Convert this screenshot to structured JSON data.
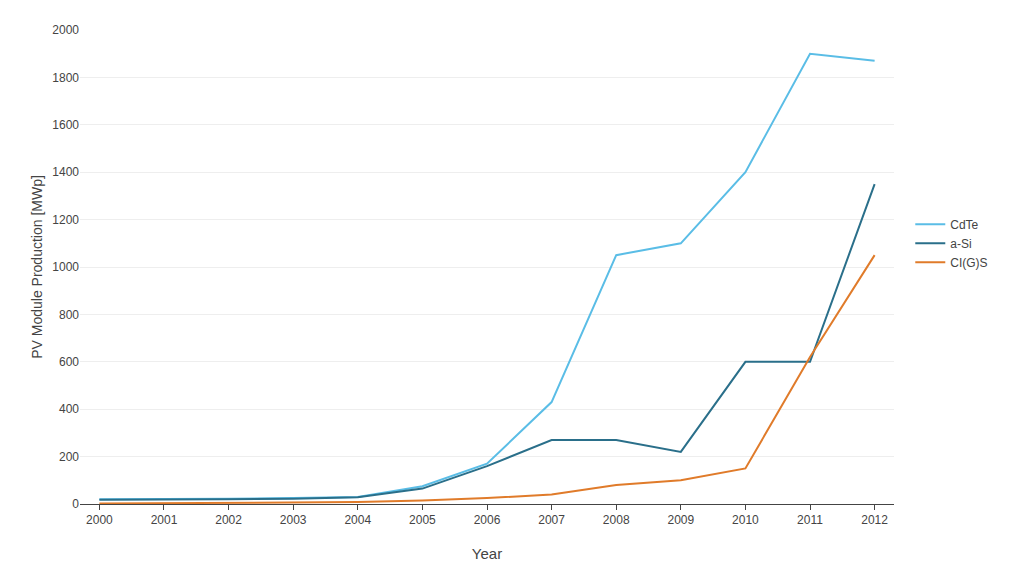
{
  "chart_data": {
    "type": "line",
    "x": [
      2000,
      2001,
      2002,
      2003,
      2004,
      2005,
      2006,
      2007,
      2008,
      2009,
      2010,
      2011,
      2012
    ],
    "series": [
      {
        "name": "CdTe",
        "color": "#5abde6",
        "values": [
          20,
          20,
          22,
          25,
          30,
          75,
          170,
          430,
          1050,
          1100,
          1400,
          1900,
          1870
        ]
      },
      {
        "name": "a-Si",
        "color": "#2a6f8a",
        "values": [
          18,
          18,
          20,
          22,
          28,
          65,
          160,
          270,
          270,
          220,
          600,
          600,
          1350
        ]
      },
      {
        "name": "CI(G)S",
        "color": "#e07b2a",
        "values": [
          2,
          3,
          4,
          5,
          8,
          15,
          25,
          40,
          80,
          100,
          150,
          620,
          1050
        ]
      }
    ],
    "xlabel": "Year",
    "ylabel": "PV Module Production [MWp]",
    "xlim": [
      1999.7,
      2012.3
    ],
    "xticks": [
      2000,
      2001,
      2002,
      2003,
      2004,
      2005,
      2006,
      2007,
      2008,
      2009,
      2010,
      2011,
      2012
    ],
    "ylim": [
      0,
      2000
    ],
    "yticks": [
      0,
      200,
      400,
      600,
      800,
      1000,
      1200,
      1400,
      1600,
      1800,
      2000
    ],
    "grid": "y",
    "legend": "right"
  }
}
